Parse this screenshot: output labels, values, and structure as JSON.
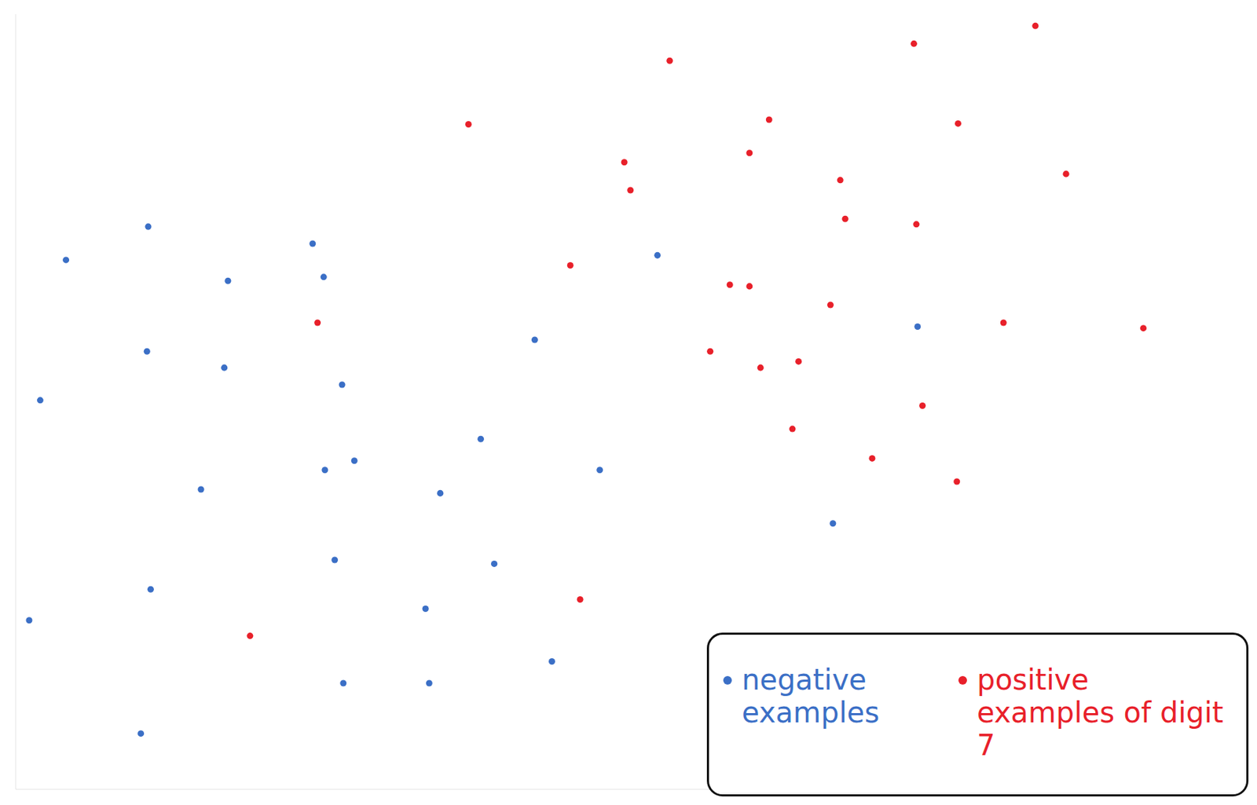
{
  "chart_data": {
    "type": "scatter",
    "xlim": [
      0,
      100
    ],
    "ylim": [
      0,
      100
    ],
    "tick_labels": false,
    "legend": "lower right",
    "marker": "circle",
    "series": [
      {
        "name": "negative examples",
        "color": "#3b6fc6",
        "x": [
          10.8,
          4.1,
          24.2,
          25.1,
          17.3,
          52.3,
          10.7,
          17.0,
          26.6,
          42.3,
          2.0,
          73.5,
          37.9,
          25.2,
          27.6,
          15.1,
          34.6,
          47.6,
          66.6,
          26.0,
          39.0,
          11.0,
          1.1,
          33.4,
          43.7,
          26.7,
          33.7,
          10.2
        ],
        "values": [
          72.6,
          68.3,
          70.4,
          66.1,
          65.6,
          68.9,
          56.5,
          54.4,
          52.2,
          58.0,
          50.2,
          59.7,
          45.2,
          41.2,
          42.4,
          38.7,
          38.2,
          41.2,
          34.3,
          29.6,
          29.1,
          25.8,
          21.8,
          23.3,
          16.5,
          13.7,
          13.7,
          7.2
        ]
      },
      {
        "name": "positive examples of digit 7",
        "color": "#e8202a",
        "x": [
          53.3,
          73.2,
          83.1,
          36.9,
          61.4,
          76.8,
          49.6,
          59.8,
          67.2,
          50.1,
          85.6,
          67.6,
          73.4,
          45.2,
          58.2,
          59.8,
          66.4,
          24.6,
          80.5,
          91.9,
          56.6,
          60.7,
          63.8,
          73.9,
          63.3,
          69.8,
          76.7,
          46.0,
          19.1
        ],
        "values": [
          94.0,
          96.2,
          98.5,
          85.8,
          86.4,
          85.9,
          80.9,
          82.1,
          78.6,
          77.3,
          79.4,
          73.6,
          72.9,
          67.6,
          65.1,
          64.9,
          62.5,
          60.2,
          60.2,
          59.5,
          56.5,
          54.4,
          55.2,
          49.5,
          46.5,
          42.7,
          39.7,
          24.5,
          19.8
        ]
      }
    ]
  }
}
